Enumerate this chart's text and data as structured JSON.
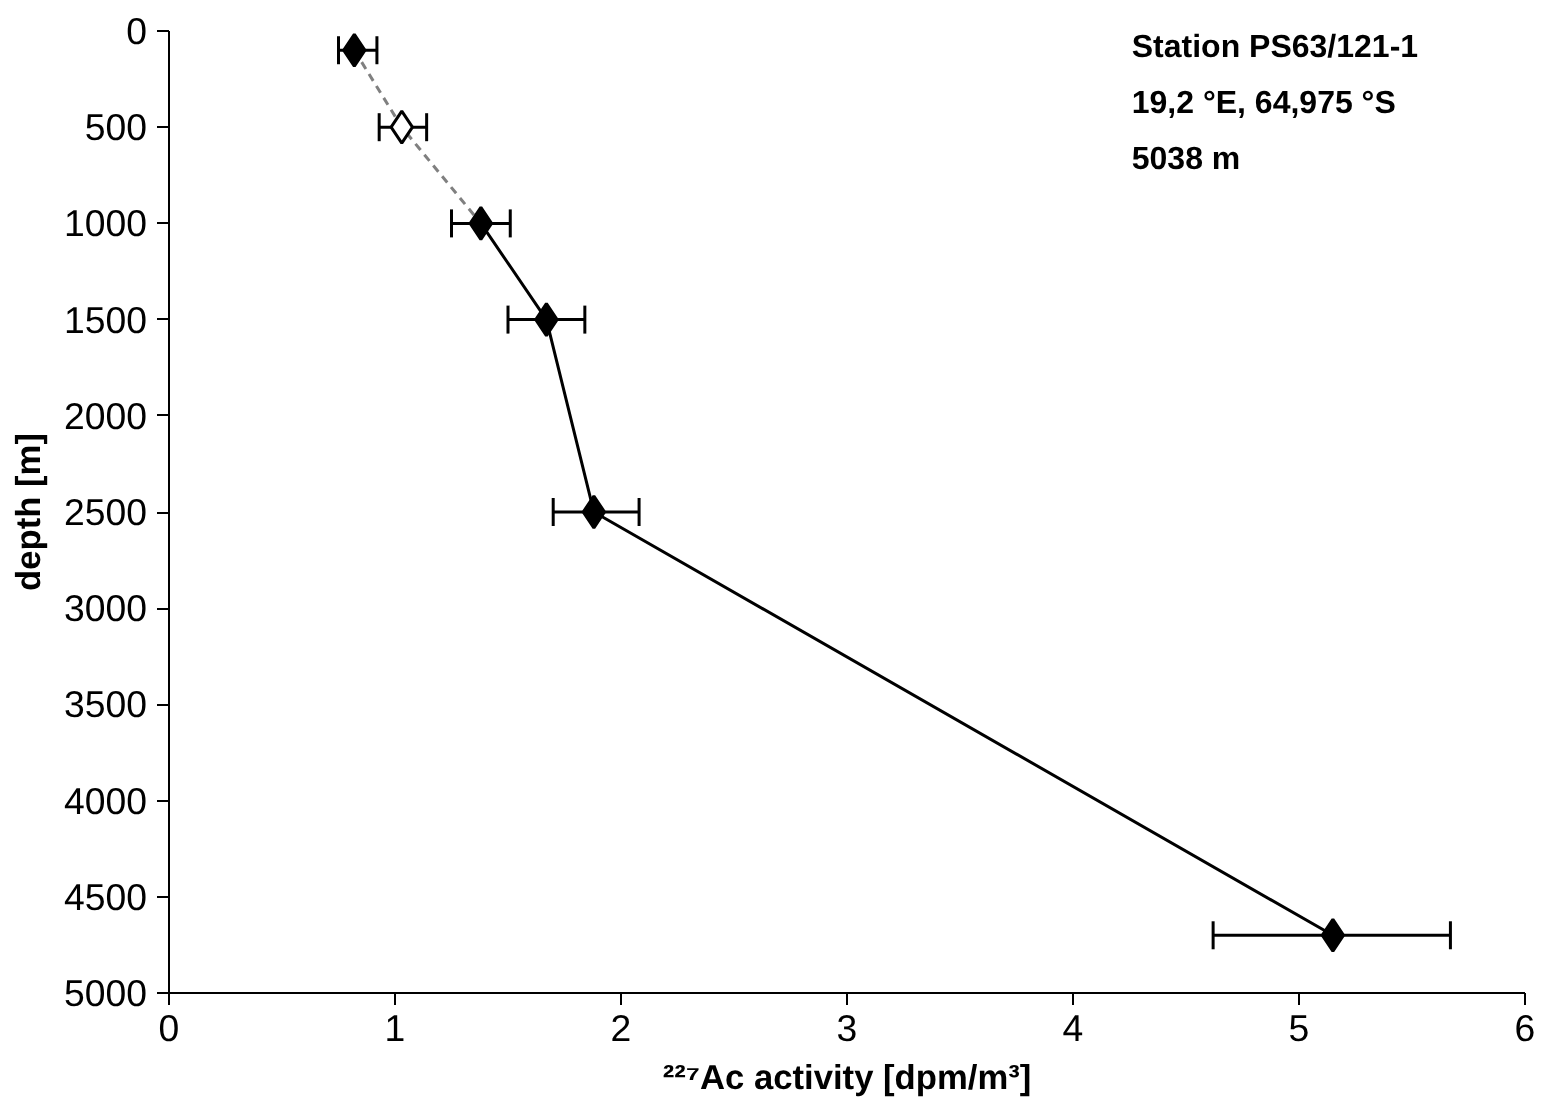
{
  "chart_data": {
    "type": "line",
    "xlabel": "²²⁷Ac activity [dpm/m³]",
    "ylabel": "depth [m]",
    "xlim": [
      0,
      6
    ],
    "xticks": [
      0,
      1,
      2,
      3,
      4,
      5,
      6
    ],
    "ylim": [
      5000,
      0
    ],
    "yticks": [
      0,
      500,
      1000,
      1500,
      2000,
      2500,
      3000,
      3500,
      4000,
      4500,
      5000
    ],
    "grid": false,
    "series": [
      {
        "color": "#808080",
        "line_style": "dashed",
        "marker": "none",
        "x": [
          0.82,
          1.03,
          1.38
        ],
        "values": [
          100,
          500,
          1000
        ]
      },
      {
        "type": "scatter",
        "color": "#000000",
        "marker": "diamond",
        "x": [
          0.82
        ],
        "values": [
          100
        ],
        "xerrors": [
          [
            0.75,
            0.92
          ]
        ]
      },
      {
        "type": "scatter",
        "color": "#ffffff",
        "marker": "diamond",
        "x": [
          1.03
        ],
        "values": [
          500
        ],
        "xerrors": [
          [
            0.93,
            1.14
          ]
        ]
      },
      {
        "color": "#000000",
        "line_style": "solid",
        "marker": "diamond",
        "x": [
          1.38,
          1.67,
          1.88,
          5.15
        ],
        "values": [
          1000,
          1500,
          2500,
          4700
        ],
        "xerrors": [
          [
            1.25,
            1.51
          ],
          [
            1.5,
            1.84
          ],
          [
            1.7,
            2.08
          ],
          [
            4.62,
            5.67
          ]
        ]
      }
    ],
    "annotations": [
      "Station PS63/121-1",
      "19,2 °E, 64,975 °S",
      "5038 m"
    ]
  }
}
